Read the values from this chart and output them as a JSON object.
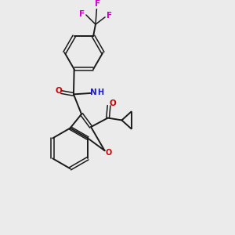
{
  "background_color": "#ebebeb",
  "bond_color": "#1a1a1a",
  "oxygen_color": "#cc0000",
  "nitrogen_color": "#1a1acc",
  "fluorine_color": "#cc00cc",
  "figsize": [
    3.0,
    3.0
  ],
  "dpi": 100,
  "xlim": [
    0,
    10
  ],
  "ylim": [
    0,
    10
  ]
}
